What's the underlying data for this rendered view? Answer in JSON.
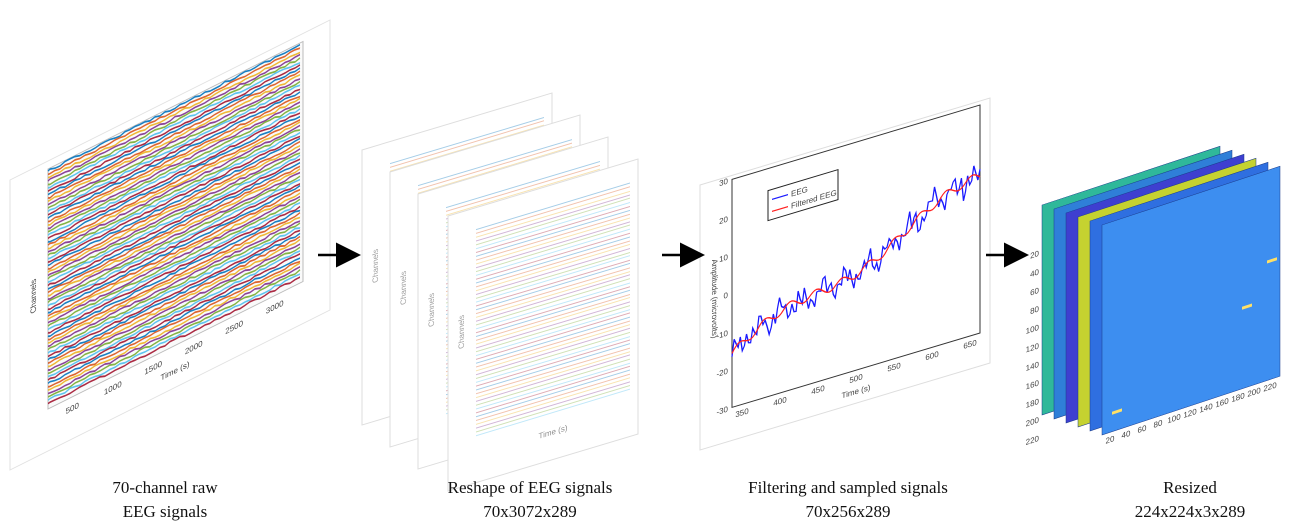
{
  "panels": [
    {
      "caption": [
        "70-channel raw",
        "EEG signals"
      ],
      "x_label": "Time (s)",
      "y_label": "Channels",
      "x_ticks": [
        500,
        1000,
        1500,
        2000,
        2500,
        3000
      ]
    },
    {
      "caption": [
        "Reshape of EEG signals",
        "70x3072x289"
      ],
      "x_label": "Time (s)",
      "y_label": "Channels"
    },
    {
      "caption": [
        "Filtering and sampled signals",
        "70x256x289"
      ],
      "x_label": "Time (s)",
      "y_label": "Amplitude (microvolts)",
      "x_ticks": [
        350,
        400,
        450,
        500,
        550,
        600,
        650
      ],
      "y_ticks": [
        30,
        20,
        10,
        0,
        -10,
        -20,
        -30
      ],
      "legend": [
        "EEG",
        "Filtered EEG"
      ]
    },
    {
      "caption": [
        "Resized",
        "224x224x3x289"
      ],
      "x_ticks": [
        20,
        40,
        60,
        80,
        100,
        120,
        140,
        160,
        180,
        200,
        220
      ],
      "y_ticks": [
        20,
        40,
        60,
        80,
        100,
        120,
        140,
        160,
        180,
        200,
        220
      ]
    }
  ]
}
